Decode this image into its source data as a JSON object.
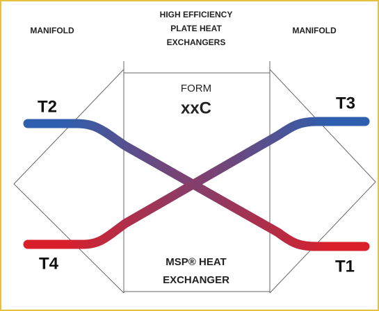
{
  "header": {
    "left": "MANIFOLD",
    "center": [
      "HIGH EFFICIENCY",
      "PLATE HEAT",
      "EXCHANGERS"
    ],
    "right": "MANIFOLD"
  },
  "box": {
    "top": "FORM",
    "model": "xxC",
    "bottom": [
      "MSP® HEAT",
      "EXCHANGER"
    ]
  },
  "ports": {
    "t2": "T2",
    "t3": "T3",
    "t4": "T4",
    "t1": "T1"
  }
}
